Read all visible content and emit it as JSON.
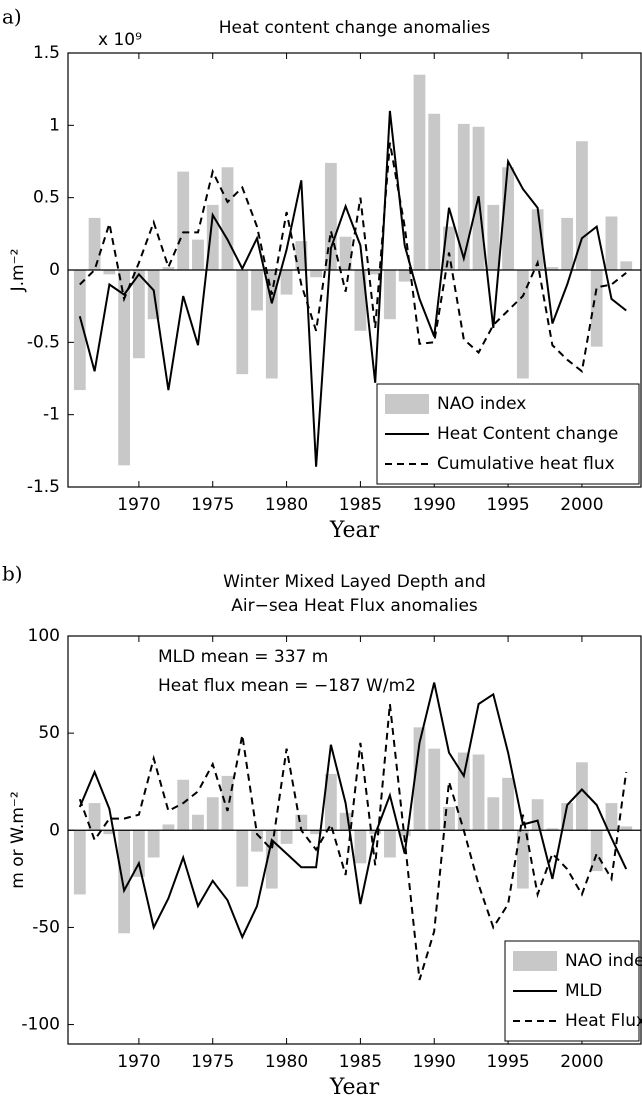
{
  "chart_data": [
    {
      "type": "combo",
      "panel_label": "a)",
      "title": "Heat content change anomalies",
      "y_multiplier": "x 10⁹",
      "x_label": "Year",
      "y_label": "J.m⁻²",
      "x": [
        1966,
        1967,
        1968,
        1969,
        1970,
        1971,
        1972,
        1973,
        1974,
        1975,
        1976,
        1977,
        1978,
        1979,
        1980,
        1981,
        1982,
        1983,
        1984,
        1985,
        1986,
        1987,
        1988,
        1989,
        1990,
        1991,
        1992,
        1993,
        1994,
        1995,
        1996,
        1997,
        1998,
        1999,
        2000,
        2001,
        2002,
        2003
      ],
      "xlim": [
        1965.2,
        2004
      ],
      "xticks": [
        1970,
        1975,
        1980,
        1985,
        1990,
        1995,
        2000
      ],
      "ylim": [
        -1.5,
        1.5
      ],
      "yticks": [
        -1.5,
        -1,
        -0.5,
        0,
        0.5,
        1,
        1.5
      ],
      "legend": "lower right",
      "series": [
        {
          "name": "NAO index",
          "type": "bar",
          "color": "#c8c8c8",
          "values": [
            -0.83,
            0.36,
            -0.03,
            -1.35,
            -0.61,
            -0.34,
            0.02,
            0.68,
            0.21,
            0.45,
            0.71,
            -0.72,
            -0.28,
            -0.75,
            -0.17,
            0.2,
            -0.05,
            0.74,
            0.23,
            -0.42,
            -0.03,
            -0.34,
            -0.08,
            1.35,
            1.08,
            0.3,
            1.01,
            0.99,
            0.45,
            0.71,
            -0.75,
            0.42,
            0.02,
            0.36,
            0.89,
            -0.53,
            0.37,
            0.06
          ]
        },
        {
          "name": "Heat Content change",
          "type": "line",
          "style": "solid",
          "color": "#000000",
          "values": [
            -0.32,
            -0.7,
            -0.1,
            -0.17,
            -0.03,
            -0.14,
            -0.83,
            -0.18,
            -0.52,
            0.38,
            0.21,
            0.01,
            0.22,
            -0.23,
            0.14,
            0.62,
            -1.36,
            0.15,
            0.44,
            0.17,
            -0.78,
            1.1,
            0.17,
            -0.2,
            -0.46,
            0.43,
            0.08,
            0.51,
            -0.4,
            0.75,
            0.56,
            0.43,
            -0.37,
            -0.1,
            0.22,
            0.3,
            -0.2,
            -0.28
          ]
        },
        {
          "name": "Cumulative heat flux",
          "type": "line",
          "style": "dashed",
          "color": "#000000",
          "values": [
            -0.1,
            0.0,
            0.32,
            -0.2,
            0.05,
            0.33,
            0.02,
            0.26,
            0.26,
            0.68,
            0.47,
            0.57,
            0.3,
            -0.17,
            0.4,
            -0.1,
            -0.42,
            0.27,
            -0.15,
            0.5,
            -0.4,
            0.88,
            0.3,
            -0.51,
            -0.5,
            0.12,
            -0.48,
            -0.57,
            -0.38,
            -0.28,
            -0.18,
            0.05,
            -0.52,
            -0.62,
            -0.7,
            -0.12,
            -0.1,
            -0.02
          ]
        }
      ]
    },
    {
      "type": "combo",
      "panel_label": "b)",
      "title": [
        "Winter Mixed Layed Depth and",
        "Air−sea Heat Flux anomalies"
      ],
      "annotations": [
        "MLD mean = 337 m",
        "Heat flux mean = −187 W/m2"
      ],
      "x_label": "Year",
      "y_label": "m or W.m⁻²",
      "x": [
        1966,
        1967,
        1968,
        1969,
        1970,
        1971,
        1972,
        1973,
        1974,
        1975,
        1976,
        1977,
        1978,
        1979,
        1980,
        1981,
        1982,
        1983,
        1984,
        1985,
        1986,
        1987,
        1988,
        1989,
        1990,
        1991,
        1992,
        1993,
        1994,
        1995,
        1996,
        1997,
        1998,
        1999,
        2000,
        2001,
        2002,
        2003
      ],
      "xlim": [
        1965.2,
        2004
      ],
      "xticks": [
        1970,
        1975,
        1980,
        1985,
        1990,
        1995,
        2000
      ],
      "ylim": [
        -110,
        100
      ],
      "yticks": [
        -100,
        -50,
        0,
        50,
        100
      ],
      "legend": "lower right",
      "series": [
        {
          "name": "NAO index",
          "type": "bar",
          "color": "#c8c8c8",
          "values": [
            -33,
            14,
            -2,
            -53,
            -24,
            -14,
            3,
            26,
            8,
            17,
            28,
            -29,
            -11,
            -30,
            -7,
            8,
            -2,
            29,
            9,
            -17,
            -2,
            -14,
            -3,
            53,
            42,
            12,
            40,
            39,
            17,
            27,
            -30,
            16,
            1,
            14,
            35,
            -21,
            14,
            2
          ]
        },
        {
          "name": "MLD",
          "type": "line",
          "style": "solid",
          "color": "#000000",
          "values": [
            12,
            30,
            11,
            -31,
            -17,
            -50,
            -35,
            -14,
            -39,
            -26,
            -36,
            -55,
            -39,
            -5,
            -12,
            -19,
            -19,
            44,
            14,
            -38,
            -2,
            18,
            -12,
            45,
            76,
            40,
            28,
            65,
            70,
            40,
            3,
            5,
            -25,
            13,
            21,
            13,
            -4,
            -20
          ]
        },
        {
          "name": "Heat Flux",
          "type": "line",
          "style": "dashed",
          "color": "#000000",
          "values": [
            16,
            -5,
            6,
            6,
            8,
            37,
            10,
            14,
            20,
            34,
            10,
            49,
            -2,
            -10,
            42,
            0,
            -10,
            3,
            -23,
            45,
            -18,
            65,
            -5,
            -77,
            -52,
            25,
            0,
            -28,
            -50,
            -38,
            8,
            -33,
            -12,
            -20,
            -33,
            -12,
            -25,
            30
          ]
        }
      ]
    }
  ]
}
